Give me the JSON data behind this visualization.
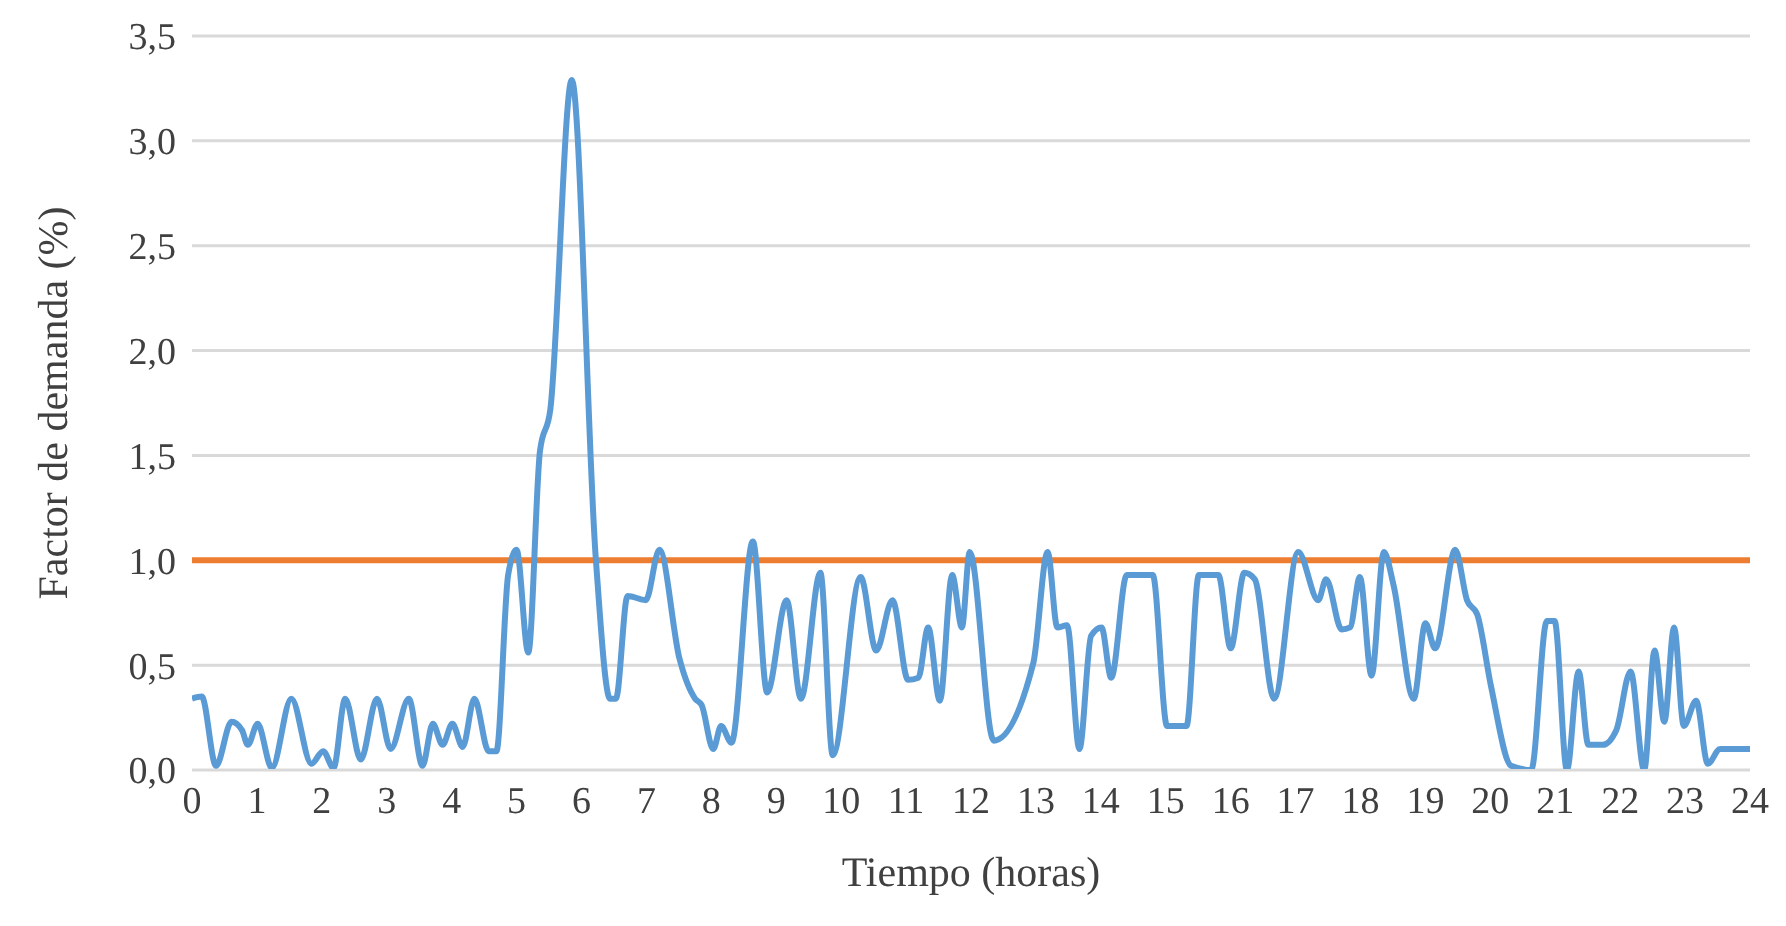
{
  "chart_data": {
    "type": "line",
    "xlabel": "Tiempo (horas)",
    "ylabel": "Factor de demanda (%)",
    "xlim": [
      0,
      24
    ],
    "xticks": [
      0,
      1,
      2,
      3,
      4,
      5,
      6,
      7,
      8,
      9,
      10,
      11,
      12,
      13,
      14,
      15,
      16,
      17,
      18,
      19,
      20,
      21,
      22,
      23,
      24
    ],
    "ylim": [
      0,
      3.5
    ],
    "yticks": [
      {
        "value": 0,
        "label": "0,0"
      },
      {
        "value": 0.5,
        "label": "0,5"
      },
      {
        "value": 1,
        "label": "1,0"
      },
      {
        "value": 1.5,
        "label": "1,5"
      },
      {
        "value": 2,
        "label": "2,0"
      },
      {
        "value": 2.5,
        "label": "2,5"
      },
      {
        "value": 3,
        "label": "3,0"
      },
      {
        "value": 3.5,
        "label": "3,5"
      }
    ],
    "grid": "y",
    "marker": "none",
    "line_style": "solid",
    "ref_lines": [
      {
        "axis": "y",
        "value": 1,
        "color": "#ed7d31"
      }
    ],
    "x": [
      0,
      0.15,
      0.37,
      0.61,
      0.77,
      0.86,
      1.01,
      1.23,
      1.53,
      1.84,
      2.02,
      2.18,
      2.36,
      2.6,
      2.85,
      3.06,
      3.34,
      3.55,
      3.71,
      3.86,
      4.01,
      4.17,
      4.35,
      4.57,
      4.69,
      4.87,
      5.0,
      5.18,
      5.36,
      5.52,
      5.85,
      6.22,
      6.44,
      6.53,
      6.71,
      6.99,
      7.2,
      7.51,
      7.75,
      7.85,
      8.03,
      8.15,
      8.31,
      8.64,
      8.86,
      9.16,
      9.38,
      9.68,
      9.87,
      10.3,
      10.54,
      10.79,
      11.03,
      11.19,
      11.34,
      11.52,
      11.71,
      11.86,
      11.98,
      12.35,
      12.96,
      13.18,
      13.33,
      13.48,
      13.67,
      13.85,
      14.01,
      14.16,
      14.4,
      14.8,
      15.02,
      15.32,
      15.51,
      15.81,
      16.0,
      16.21,
      16.37,
      16.67,
      17.04,
      17.35,
      17.47,
      17.71,
      17.84,
      17.99,
      18.17,
      18.36,
      18.51,
      18.82,
      19.0,
      19.15,
      19.46,
      19.64,
      19.8,
      20.01,
      20.32,
      20.63,
      20.87,
      20.99,
      21.18,
      21.36,
      21.51,
      21.73,
      21.94,
      22.16,
      22.37,
      22.53,
      22.68,
      22.83,
      22.98,
      23.17,
      23.35,
      23.54,
      24
    ],
    "series": [
      {
        "color": "#5b9bd5",
        "values": [
          0.34,
          0.35,
          0.02,
          0.23,
          0.19,
          0.12,
          0.22,
          0.01,
          0.34,
          0.03,
          0.09,
          0.01,
          0.34,
          0.05,
          0.34,
          0.1,
          0.34,
          0.02,
          0.22,
          0.12,
          0.22,
          0.11,
          0.34,
          0.09,
          0.09,
          0.93,
          1.05,
          0.56,
          1.52,
          1.72,
          3.29,
          1.01,
          0.34,
          0.34,
          0.83,
          0.81,
          1.05,
          0.53,
          0.34,
          0.31,
          0.1,
          0.21,
          0.13,
          1.09,
          0.37,
          0.81,
          0.34,
          0.94,
          0.07,
          0.92,
          0.57,
          0.81,
          0.43,
          0.44,
          0.68,
          0.33,
          0.93,
          0.68,
          1.04,
          0.14,
          0.51,
          1.04,
          0.68,
          0.69,
          0.1,
          0.64,
          0.68,
          0.44,
          0.93,
          0.93,
          0.21,
          0.21,
          0.93,
          0.93,
          0.58,
          0.94,
          0.91,
          0.34,
          1.04,
          0.81,
          0.91,
          0.67,
          0.68,
          0.92,
          0.45,
          1.04,
          0.88,
          0.34,
          0.7,
          0.58,
          1.05,
          0.81,
          0.74,
          0.4,
          0.02,
          0,
          0.71,
          0.71,
          0,
          0.47,
          0.12,
          0.12,
          0.19,
          0.47,
          0,
          0.57,
          0.23,
          0.68,
          0.21,
          0.33,
          0.03,
          0.1,
          0.1
        ]
      }
    ]
  }
}
